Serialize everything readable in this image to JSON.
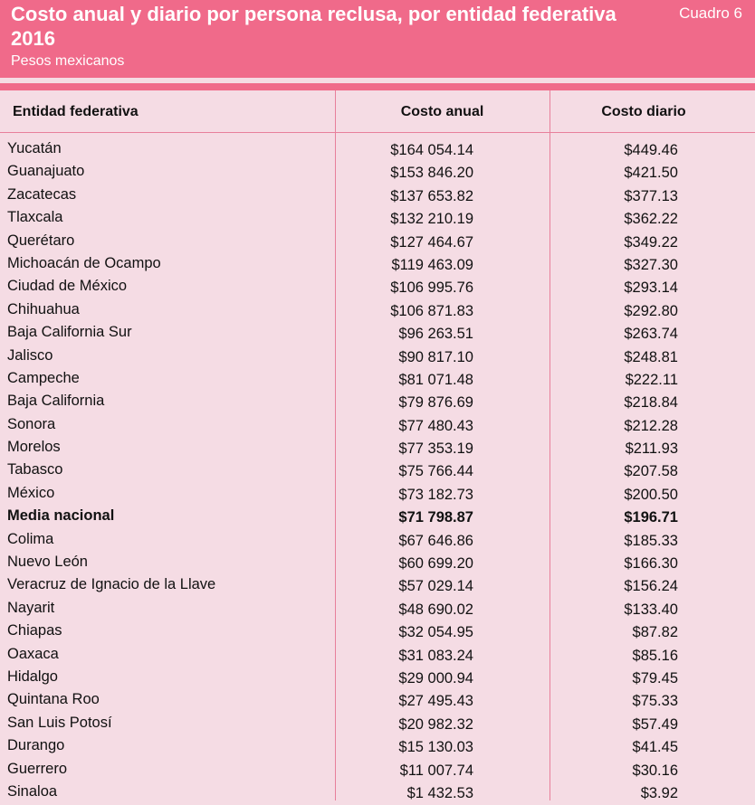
{
  "header": {
    "title": "Costo anual y diario por persona reclusa, por entidad federativa 2016",
    "subtitle": "Pesos mexicanos",
    "table_label": "Cuadro 6"
  },
  "colors": {
    "accent": "#f06a8a",
    "background": "#f5dce4",
    "rule": "#e8809b"
  },
  "table": {
    "columns": [
      "Entidad federativa",
      "Costo anual",
      "Costo diario"
    ],
    "rows": [
      {
        "entidad": "Yucatán",
        "anual": "$164 054.14",
        "diario": "$449.46"
      },
      {
        "entidad": "Guanajuato",
        "anual": "$153 846.20",
        "diario": "$421.50"
      },
      {
        "entidad": "Zacatecas",
        "anual": "$137 653.82",
        "diario": "$377.13"
      },
      {
        "entidad": "Tlaxcala",
        "anual": "$132 210.19",
        "diario": "$362.22"
      },
      {
        "entidad": "Querétaro",
        "anual": "$127 464.67",
        "diario": "$349.22"
      },
      {
        "entidad": "Michoacán de Ocampo",
        "anual": "$119 463.09",
        "diario": "$327.30"
      },
      {
        "entidad": "Ciudad de México",
        "anual": "$106 995.76",
        "diario": "$293.14"
      },
      {
        "entidad": "Chihuahua",
        "anual": "$106 871.83",
        "diario": "$292.80"
      },
      {
        "entidad": "Baja California Sur",
        "anual": "$96 263.51",
        "diario": "$263.74"
      },
      {
        "entidad": "Jalisco",
        "anual": "$90 817.10",
        "diario": "$248.81"
      },
      {
        "entidad": "Campeche",
        "anual": "$81 071.48",
        "diario": "$222.11"
      },
      {
        "entidad": "Baja California",
        "anual": "$79 876.69",
        "diario": "$218.84"
      },
      {
        "entidad": "Sonora",
        "anual": "$77 480.43",
        "diario": "$212.28"
      },
      {
        "entidad": "Morelos",
        "anual": "$77 353.19",
        "diario": "$211.93"
      },
      {
        "entidad": "Tabasco",
        "anual": "$75 766.44",
        "diario": "$207.58"
      },
      {
        "entidad": "México",
        "anual": "$73 182.73",
        "diario": "$200.50"
      },
      {
        "entidad": "Media nacional",
        "anual": "$71 798.87",
        "diario": "$196.71",
        "bold": true
      },
      {
        "entidad": "Colima",
        "anual": "$67 646.86",
        "diario": "$185.33"
      },
      {
        "entidad": "Nuevo León",
        "anual": "$60 699.20",
        "diario": "$166.30"
      },
      {
        "entidad": "Veracruz de Ignacio de la Llave",
        "anual": "$57 029.14",
        "diario": "$156.24"
      },
      {
        "entidad": "Nayarit",
        "anual": "$48 690.02",
        "diario": "$133.40"
      },
      {
        "entidad": "Chiapas",
        "anual": "$32 054.95",
        "diario": "$87.82"
      },
      {
        "entidad": "Oaxaca",
        "anual": "$31 083.24",
        "diario": "$85.16"
      },
      {
        "entidad": "Hidalgo",
        "anual": "$29 000.94",
        "diario": "$79.45"
      },
      {
        "entidad": "Quintana Roo",
        "anual": "$27 495.43",
        "diario": "$75.33"
      },
      {
        "entidad": "San Luis Potosí",
        "anual": "$20 982.32",
        "diario": "$57.49"
      },
      {
        "entidad": "Durango",
        "anual": "$15 130.03",
        "diario": "$41.45"
      },
      {
        "entidad": "Guerrero",
        "anual": "$11 007.74",
        "diario": "$30.16"
      },
      {
        "entidad": "Sinaloa",
        "anual": "$1 432.53",
        "diario": "$3.92"
      }
    ]
  }
}
